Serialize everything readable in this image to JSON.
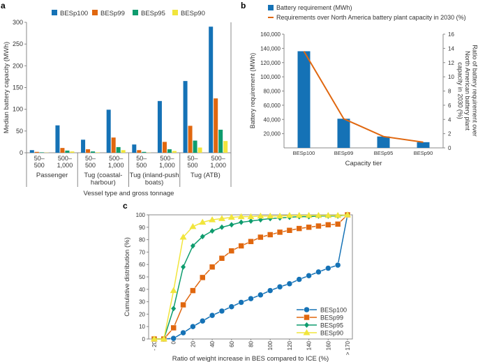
{
  "colors": {
    "BESp100": "#1572b6",
    "BESp99": "#e0670f",
    "BESp95": "#0e9c6e",
    "BESp90": "#f1e53c",
    "axis": "#888888"
  },
  "chart_data": [
    {
      "panel": "a",
      "type": "bar",
      "xlabel": "Vessel type and gross tonnage",
      "ylabel": "Median battery capacity (MWh)",
      "ylim": [
        0,
        300
      ],
      "yticks": [
        0,
        50,
        100,
        150,
        200,
        250,
        300
      ],
      "legend": "top",
      "groups": [
        {
          "label": "Passenger",
          "subcategories": [
            "50–\n500",
            "500–\n1,000"
          ]
        },
        {
          "label": "Tug (coastal-\nharbour)",
          "subcategories": [
            "50–\n500",
            "500–\n1,000"
          ]
        },
        {
          "label": "Tug (inland-push\nboats)",
          "subcategories": [
            "50–\n500",
            "500–\n1,000"
          ]
        },
        {
          "label": "Tug (ATB)",
          "subcategories": [
            "50–\n500",
            "500–\n1,000"
          ]
        }
      ],
      "series": [
        {
          "name": "BESp100",
          "values": [
            6,
            63,
            30,
            99,
            19,
            119,
            165,
            290
          ]
        },
        {
          "name": "BESp99",
          "values": [
            2,
            11,
            8,
            35,
            6,
            25,
            62,
            125
          ]
        },
        {
          "name": "BESp95",
          "values": [
            1,
            5,
            3,
            13,
            2,
            8,
            28,
            53
          ]
        },
        {
          "name": "BESp90",
          "values": [
            0.5,
            3,
            1,
            6,
            0.5,
            4,
            12,
            27
          ]
        }
      ]
    },
    {
      "panel": "b",
      "type": "bar",
      "xlabel": "Capacity tier",
      "ylabel": "Battery requirement (MWh)",
      "ylabel_right": "Ratio of battery requirement over\nNorth American battery plant\ncapacity in 2030 (%)",
      "ylim": [
        0,
        160000
      ],
      "ylim_right": [
        0,
        16
      ],
      "yticks": [
        "20,000",
        "40,000",
        "60,000",
        "80,000",
        "100,000",
        "120,000",
        "140,000",
        "160,000"
      ],
      "yticks_right": [
        0,
        2,
        4,
        6,
        8,
        10,
        12,
        14,
        16
      ],
      "categories": [
        "BESp100",
        "BESp99",
        "BESp95",
        "BESp90"
      ],
      "legend": "top",
      "series": [
        {
          "name": "Battery requirement  (MWh)",
          "kind": "bar",
          "values": [
            136000,
            41000,
            16000,
            8000
          ]
        },
        {
          "name": "Requirements over North America battery plant capacity in 2030 (%)",
          "kind": "line",
          "values": [
            13.6,
            4.1,
            1.6,
            0.8
          ]
        }
      ]
    },
    {
      "panel": "c",
      "type": "line",
      "xlabel": "Ratio of weight increase in BES compared to ICE (%)",
      "ylabel": "Cumulative distribution (%)",
      "ylim": [
        0,
        100
      ],
      "yticks": [
        0,
        10,
        20,
        30,
        40,
        50,
        60,
        70,
        80,
        90,
        100
      ],
      "x": [
        "-20",
        "-10",
        "0",
        "10",
        "20",
        "30",
        "40",
        "50",
        "60",
        "70",
        "80",
        "90",
        "100",
        "110",
        "120",
        "130",
        "140",
        "150",
        "160",
        "170",
        "> 170"
      ],
      "xticks": [
        "- 20",
        "0",
        "20",
        "40",
        "60",
        "80",
        "100",
        "120",
        "140",
        "160",
        "> 170"
      ],
      "legend": "bottom-right",
      "series": [
        {
          "name": "BESp100",
          "marker": "circle",
          "values": [
            0,
            0,
            0.5,
            5,
            10,
            14.5,
            19,
            22.5,
            26,
            29.5,
            32.5,
            35.5,
            39,
            42,
            44.5,
            48,
            51,
            54,
            57,
            59.5,
            100
          ]
        },
        {
          "name": "BESp99",
          "marker": "square",
          "values": [
            0,
            0,
            9,
            27.5,
            39,
            49.5,
            58,
            65,
            71,
            75,
            78.5,
            82,
            84,
            86,
            87.5,
            89,
            90,
            91,
            92,
            92.5,
            100
          ]
        },
        {
          "name": "BESp95",
          "marker": "diamond",
          "values": [
            0,
            0,
            24.5,
            58,
            75,
            82.5,
            87,
            90,
            92,
            94,
            95,
            96,
            97,
            97.5,
            98,
            98.5,
            98.5,
            99,
            99,
            99,
            100
          ]
        },
        {
          "name": "BESp90",
          "marker": "triangle",
          "values": [
            0,
            0,
            39,
            82,
            90.5,
            94,
            96,
            97,
            98,
            98.5,
            98.5,
            99,
            99,
            99,
            99.5,
            99.5,
            99.5,
            99.5,
            99.5,
            99.5,
            100
          ]
        }
      ]
    }
  ],
  "panels": {
    "a": "a",
    "b": "b",
    "c": "c"
  }
}
